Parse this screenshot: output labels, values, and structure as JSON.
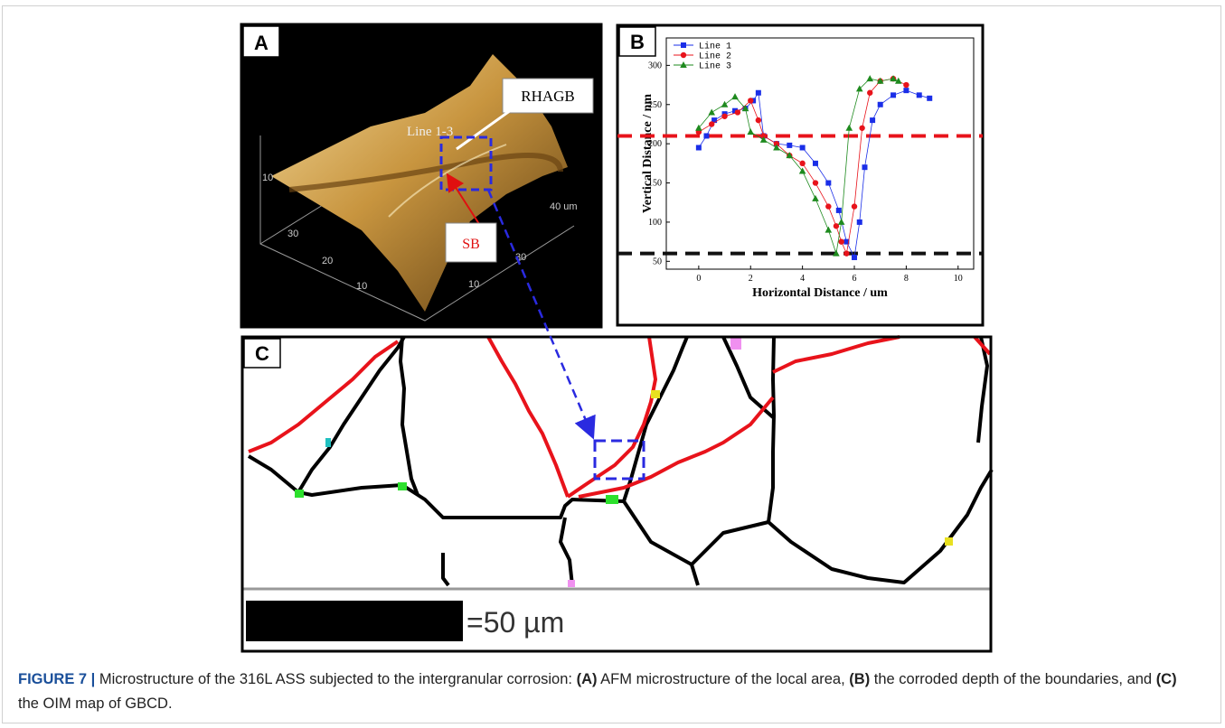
{
  "panel_a": {
    "label": "A",
    "rhagb": "RHAGB",
    "line": "Line 1-3",
    "sb": "SB",
    "axis_labels": [
      "10",
      "30",
      "20",
      "10",
      "30",
      "10",
      "40 um"
    ]
  },
  "chart_data": {
    "type": "line",
    "panel_label": "B",
    "x_label": "Horizontal Distance / um",
    "y_label": "Vertical Distance / nm",
    "xlim": [
      -1.25,
      10.6
    ],
    "ylim": [
      40,
      335
    ],
    "xticks": [
      0,
      2,
      4,
      6,
      8,
      10
    ],
    "yticks": [
      50,
      100,
      150,
      200,
      250,
      300
    ],
    "legend": "upper left",
    "series": [
      {
        "name": "Line 1",
        "color": "#1a2ee8",
        "marker": "square",
        "x": [
          0,
          0.3,
          0.6,
          1,
          1.4,
          1.8,
          2.1,
          2.3,
          2.5,
          3,
          3.5,
          4,
          4.5,
          5,
          5.4,
          5.7,
          6,
          6.2,
          6.4,
          6.7,
          7,
          7.5,
          8,
          8.5,
          8.9
        ],
        "values": [
          195,
          210,
          230,
          238,
          242,
          245,
          255,
          265,
          210,
          200,
          198,
          195,
          175,
          150,
          115,
          75,
          55,
          100,
          170,
          230,
          250,
          262,
          268,
          262,
          258
        ]
      },
      {
        "name": "Line 2",
        "color": "#e8131b",
        "marker": "circle",
        "x": [
          0,
          0.5,
          1,
          1.5,
          2,
          2.3,
          2.5,
          3,
          3.5,
          4,
          4.5,
          5,
          5.3,
          5.5,
          5.7,
          6,
          6.3,
          6.6,
          7,
          7.5,
          8
        ],
        "values": [
          215,
          225,
          235,
          240,
          255,
          230,
          210,
          200,
          185,
          175,
          150,
          120,
          95,
          75,
          60,
          120,
          220,
          265,
          280,
          283,
          275
        ]
      },
      {
        "name": "Line 3",
        "color": "#1e8a1e",
        "marker": "triangle",
        "x": [
          0,
          0.5,
          1,
          1.4,
          1.8,
          2,
          2.5,
          3,
          3.5,
          4,
          4.5,
          5,
          5.3,
          5.5,
          5.8,
          6.2,
          6.6,
          7,
          7.5,
          7.7
        ],
        "values": [
          220,
          240,
          250,
          260,
          245,
          215,
          205,
          195,
          185,
          165,
          130,
          90,
          60,
          100,
          220,
          270,
          283,
          280,
          283,
          280
        ]
      }
    ],
    "reference_lines": [
      {
        "value": 210,
        "color": "#e8131b"
      },
      {
        "value": 60,
        "color": "#111111"
      }
    ]
  },
  "panel_c": {
    "label": "C",
    "scale": "=50 µm"
  },
  "caption": {
    "label": "FIGURE 7 |",
    "parts": [
      "Microstructure of the 316L ASS subjected to the intergranular corrosion:",
      "(A)",
      "AFM microstructure of the local area,",
      "(B)",
      "the corroded depth of the boundaries, and",
      "(C)",
      "the OIM map of GBCD."
    ]
  }
}
